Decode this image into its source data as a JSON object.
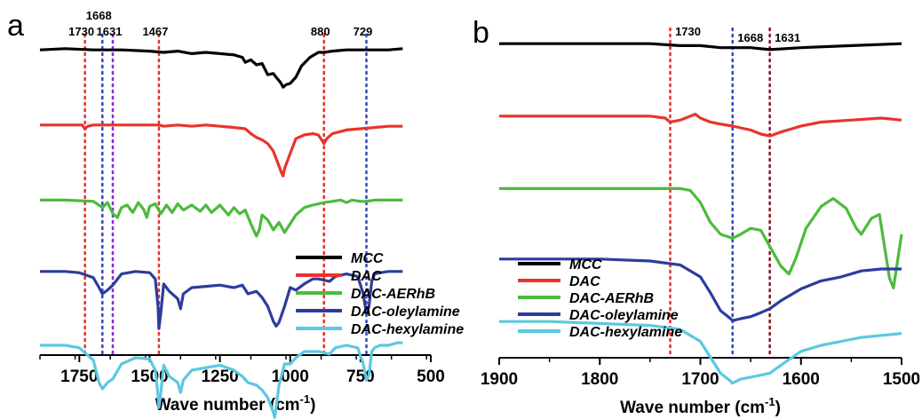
{
  "chart_data": [
    {
      "panel_label": "a",
      "type": "line",
      "xlabel": "Wave number (cm",
      "xlabel_sup": "-1",
      "xlabel_close": ")",
      "xlim": [
        1890,
        500
      ],
      "ylim": [
        0,
        100
      ],
      "y_axis_shown": false,
      "xticks": [
        1750,
        1500,
        1250,
        1000,
        750,
        500
      ],
      "xtick_labels": [
        "1750",
        "1500",
        "1250",
        "1000",
        "750",
        "500"
      ],
      "markers": [
        {
          "x": 1730,
          "label": "1730",
          "color": "#e8342c"
        },
        {
          "x": 1668,
          "label": "1668",
          "color": "#3a4bbd"
        },
        {
          "x": 1631,
          "label": "1631",
          "color": "#8a2be2"
        },
        {
          "x": 1467,
          "label": "1467",
          "color": "#e8342c"
        },
        {
          "x": 880,
          "label": "880",
          "color": "#e8342c"
        },
        {
          "x": 729,
          "label": "729",
          "color": "#3a4bbd"
        }
      ],
      "legend_position": "bottom-right",
      "series": [
        {
          "name": "MCC",
          "color": "#000000",
          "x": [
            1890,
            1800,
            1700,
            1600,
            1500,
            1450,
            1400,
            1350,
            1300,
            1250,
            1200,
            1170,
            1160,
            1140,
            1120,
            1100,
            1080,
            1060,
            1050,
            1035,
            1025,
            1015,
            1000,
            980,
            960,
            930,
            900,
            880,
            850,
            800,
            750,
            700,
            650,
            600
          ],
          "y": [
            92,
            93,
            92,
            92,
            91,
            90,
            91,
            89,
            90,
            89,
            88,
            86,
            82,
            84,
            80,
            81,
            72,
            73,
            70,
            66,
            62,
            64,
            65,
            70,
            79,
            86,
            90,
            90,
            91,
            92,
            92,
            92,
            92,
            93
          ]
        },
        {
          "name": "DAC",
          "color": "#e8342c",
          "x": [
            1890,
            1800,
            1740,
            1730,
            1720,
            1700,
            1650,
            1600,
            1500,
            1467,
            1450,
            1400,
            1350,
            1300,
            1250,
            1200,
            1160,
            1140,
            1120,
            1100,
            1080,
            1060,
            1040,
            1030,
            1025,
            1020,
            1000,
            980,
            950,
            920,
            900,
            885,
            880,
            870,
            850,
            800,
            750,
            700,
            650,
            600
          ],
          "y": [
            83,
            83,
            83,
            80,
            82,
            83,
            83,
            83,
            83,
            83,
            82,
            83,
            82,
            83,
            82,
            81,
            80,
            76,
            73,
            71,
            68,
            62,
            50,
            44,
            42,
            48,
            60,
            72,
            75,
            76,
            75,
            70,
            68,
            72,
            76,
            79,
            80,
            81,
            82,
            82
          ]
        },
        {
          "name": "DAC-AERhB",
          "color": "#4cbb3c",
          "x": [
            1890,
            1800,
            1700,
            1668,
            1650,
            1630,
            1615,
            1600,
            1580,
            1560,
            1540,
            1520,
            1510,
            1500,
            1480,
            1460,
            1440,
            1420,
            1400,
            1380,
            1350,
            1320,
            1300,
            1280,
            1250,
            1220,
            1200,
            1180,
            1160,
            1140,
            1120,
            1110,
            1100,
            1080,
            1060,
            1040,
            1020,
            1000,
            980,
            950,
            920,
            880,
            850,
            820,
            800,
            780,
            750,
            729,
            700,
            650,
            600
          ],
          "y": [
            74,
            74,
            73,
            68,
            72,
            63,
            60,
            68,
            70,
            64,
            72,
            66,
            60,
            69,
            71,
            63,
            70,
            64,
            71,
            66,
            70,
            65,
            70,
            64,
            70,
            62,
            68,
            63,
            66,
            55,
            45,
            50,
            62,
            58,
            50,
            56,
            48,
            55,
            62,
            68,
            70,
            72,
            73,
            74,
            72,
            74,
            73,
            73,
            74,
            74,
            74
          ]
        },
        {
          "name": "DAC-oleylamine",
          "color": "#2c3d9e",
          "x": [
            1890,
            1800,
            1750,
            1700,
            1680,
            1668,
            1650,
            1631,
            1600,
            1550,
            1500,
            1480,
            1470,
            1467,
            1460,
            1450,
            1430,
            1400,
            1390,
            1380,
            1350,
            1300,
            1250,
            1200,
            1170,
            1150,
            1120,
            1100,
            1080,
            1060,
            1050,
            1040,
            1020,
            1000,
            980,
            950,
            920,
            900,
            880,
            860,
            840,
            800,
            760,
            740,
            729,
            720,
            710,
            700,
            680,
            650,
            620,
            600
          ],
          "y": [
            68,
            68,
            67,
            63,
            55,
            50,
            53,
            57,
            66,
            68,
            67,
            62,
            40,
            22,
            35,
            58,
            52,
            46,
            38,
            50,
            55,
            56,
            57,
            55,
            57,
            50,
            52,
            47,
            40,
            28,
            24,
            27,
            40,
            55,
            53,
            58,
            62,
            62,
            61,
            60,
            64,
            66,
            64,
            50,
            34,
            40,
            60,
            66,
            67,
            68,
            68,
            68
          ]
        },
        {
          "name": "DAC-hexylamine",
          "color": "#5cc8e0",
          "x": [
            1890,
            1800,
            1750,
            1700,
            1680,
            1668,
            1650,
            1631,
            1600,
            1550,
            1500,
            1480,
            1470,
            1467,
            1460,
            1450,
            1430,
            1400,
            1390,
            1380,
            1350,
            1300,
            1250,
            1200,
            1170,
            1150,
            1120,
            1100,
            1080,
            1060,
            1055,
            1050,
            1040,
            1020,
            1000,
            980,
            950,
            920,
            900,
            880,
            860,
            840,
            800,
            760,
            740,
            729,
            720,
            710,
            700,
            680,
            650,
            620,
            600
          ],
          "y": [
            60,
            60,
            58,
            48,
            30,
            25,
            30,
            33,
            45,
            50,
            49,
            40,
            20,
            10,
            22,
            44,
            35,
            30,
            22,
            32,
            40,
            42,
            44,
            40,
            35,
            30,
            28,
            24,
            18,
            6,
            2,
            10,
            28,
            45,
            45,
            50,
            55,
            55,
            55,
            54,
            53,
            58,
            60,
            58,
            45,
            32,
            36,
            55,
            58,
            60,
            60,
            62,
            62
          ]
        }
      ]
    },
    {
      "panel_label": "b",
      "type": "line",
      "xlabel": "Wave number (cm",
      "xlabel_sup": "-1",
      "xlabel_close": ")",
      "xlim": [
        1900,
        1500
      ],
      "ylim": [
        0,
        100
      ],
      "y_axis_shown": false,
      "xticks": [
        1900,
        1800,
        1700,
        1600,
        1500
      ],
      "xtick_labels": [
        "1900",
        "1800",
        "1700",
        "1600",
        "1500"
      ],
      "markers": [
        {
          "x": 1730,
          "label": "1730",
          "color": "#e8342c"
        },
        {
          "x": 1668,
          "label": "1668",
          "color": "#3a4bbd"
        },
        {
          "x": 1631,
          "label": "1631",
          "color": "#8a1a2a"
        }
      ],
      "legend_position": "bottom-left",
      "series": [
        {
          "name": "MCC",
          "color": "#000000",
          "x": [
            1900,
            1850,
            1800,
            1750,
            1720,
            1700,
            1680,
            1668,
            1650,
            1631,
            1600,
            1550,
            1500
          ],
          "y": [
            95,
            95,
            95,
            95,
            94,
            94,
            93,
            93,
            93,
            92,
            93,
            94,
            95
          ]
        },
        {
          "name": "DAC",
          "color": "#e8342c",
          "x": [
            1900,
            1850,
            1800,
            1750,
            1735,
            1730,
            1720,
            1705,
            1700,
            1690,
            1680,
            1668,
            1650,
            1640,
            1631,
            1620,
            1600,
            1580,
            1550,
            1520,
            1500
          ],
          "y": [
            80,
            80,
            80,
            80,
            79,
            77,
            78,
            81,
            79,
            77,
            76,
            75,
            73,
            71,
            70,
            72,
            75,
            77,
            78,
            79,
            78
          ]
        },
        {
          "name": "DAC-AERhB",
          "color": "#4cbb3c",
          "x": [
            1900,
            1850,
            1800,
            1750,
            1720,
            1710,
            1700,
            1690,
            1680,
            1668,
            1660,
            1650,
            1640,
            1630,
            1620,
            1612,
            1605,
            1595,
            1580,
            1568,
            1555,
            1545,
            1540,
            1530,
            1522,
            1512,
            1508,
            1500
          ],
          "y": [
            65,
            65,
            65,
            65,
            65,
            64,
            58,
            48,
            42,
            40,
            42,
            45,
            44,
            35,
            26,
            22,
            30,
            45,
            56,
            60,
            55,
            45,
            42,
            50,
            52,
            20,
            15,
            42
          ]
        },
        {
          "name": "DAC-oleylamine",
          "color": "#2c3d9e",
          "x": [
            1900,
            1850,
            1800,
            1750,
            1720,
            1700,
            1690,
            1680,
            1670,
            1668,
            1660,
            1650,
            1640,
            1631,
            1620,
            1600,
            1580,
            1560,
            1540,
            1520,
            1500
          ],
          "y": [
            51,
            51,
            51,
            50,
            48,
            42,
            34,
            25,
            21,
            20,
            21,
            22,
            24,
            26,
            30,
            36,
            40,
            42,
            45,
            46,
            46
          ]
        },
        {
          "name": "DAC-hexylamine",
          "color": "#5cc8e0",
          "x": [
            1900,
            1850,
            1800,
            1750,
            1720,
            1700,
            1690,
            1680,
            1670,
            1668,
            1660,
            1650,
            1640,
            1631,
            1620,
            1600,
            1580,
            1560,
            1540,
            1520,
            1500
          ],
          "y": [
            41,
            41,
            40,
            39,
            37,
            31,
            23,
            15,
            11,
            10,
            12,
            13,
            14,
            15,
            19,
            26,
            29,
            31,
            33,
            34,
            35
          ]
        }
      ]
    }
  ]
}
